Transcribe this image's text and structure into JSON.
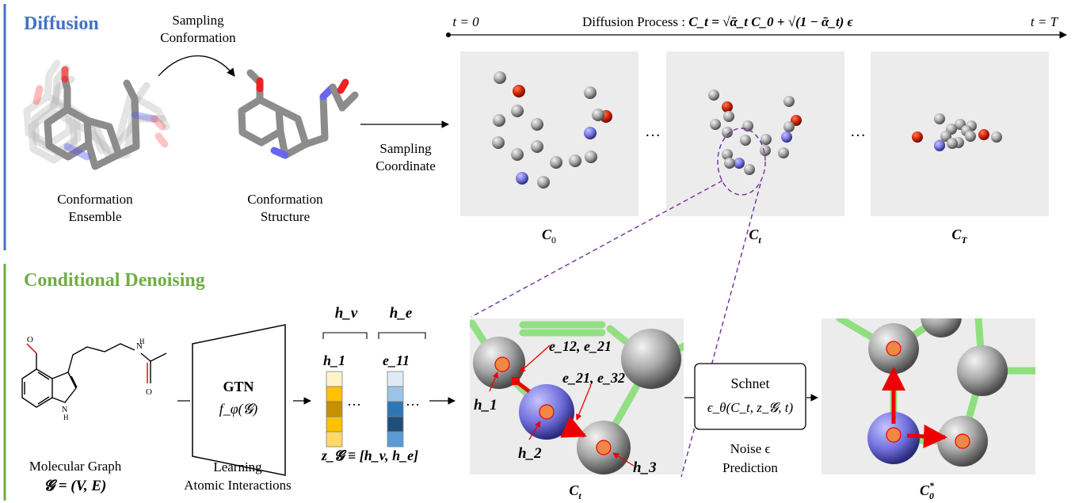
{
  "colors": {
    "diffusion_title": "#4472c4",
    "denoise_title": "#70ad47",
    "carbon": "#a8a8a8",
    "oxygen": "#cc2200",
    "nitrogen": "#7070dd",
    "bond": "#8fdf7f",
    "hydrogen_marker": "#ee8844",
    "accent_red": "#ee0000",
    "accent_blue": "#1f6fbf",
    "panel_bg": "#ececec",
    "dashed": "#7030a0"
  },
  "diffusion": {
    "title": "Diffusion",
    "sampling_conformation": [
      "Sampling",
      "Conformation"
    ],
    "ensemble_label": [
      "Conformation",
      "Ensemble"
    ],
    "structure_label": [
      "Conformation",
      "Structure"
    ],
    "sampling_coordinate": [
      "Sampling",
      "Coordinate"
    ],
    "timeline": {
      "t0": "t = 0",
      "tT": "t = T",
      "process_prefix": "Diffusion Process : ",
      "formula": "C_t = √ᾱ_t C_0 + √(1 − ᾱ_t) ϵ"
    },
    "dots": "…",
    "panels": [
      {
        "label": "C",
        "sub": "0"
      },
      {
        "label": "C",
        "sub": "t"
      },
      {
        "label": "C",
        "sub": "T"
      }
    ]
  },
  "denoising": {
    "title": "Conditional Denoising",
    "graph_label": "Molecular Graph",
    "graph_formula": "𝓖 = (V, E)",
    "gtn": {
      "name": "GTN",
      "func": "f_φ(𝓖)"
    },
    "learning_label": [
      "Learning",
      "Atomic Interactions"
    ],
    "hv": "h_v",
    "he": "h_e",
    "h1": "h_1",
    "e11": "e_11",
    "dots": "…",
    "embedding": "z_𝓖 ≡ [h_v, h_e]",
    "edge_labels": {
      "e12_21": "e_12, e_21",
      "e21_32": "e_21, e_32"
    },
    "node_labels": {
      "h1": "h_1",
      "h2": "h_2",
      "h3": "h_3"
    },
    "ct_label": {
      "label": "C",
      "sub": "t"
    },
    "schnet": {
      "name": "Schnet",
      "formula": "ϵ_θ(C_t, z_𝓖, t)"
    },
    "noise_label": [
      "Noise ϵ",
      "Prediction"
    ],
    "c0_label": {
      "label": "C",
      "sub": "0",
      "sup": "*"
    }
  }
}
